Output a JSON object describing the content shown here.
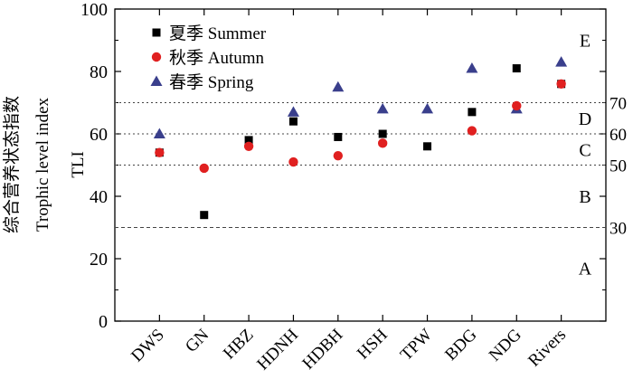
{
  "chart_data": {
    "type": "scatter",
    "title": "",
    "ylabel_cn": "综合营养状态指数",
    "ylabel_en": "Trophic level index",
    "ylabel_right": "TLI",
    "categories": [
      "DWS",
      "GN",
      "HBZ",
      "HDNH",
      "HDBH",
      "HSH",
      "TPW",
      "BDG",
      "NDG",
      "Rivers"
    ],
    "ylim": [
      0,
      100
    ],
    "yticks": [
      0,
      20,
      40,
      60,
      80,
      100
    ],
    "grid": false,
    "legend_position": "top-left",
    "series": [
      {
        "name": "夏季 Summer",
        "marker": "square",
        "color": "#000000",
        "values": [
          54,
          34,
          58,
          64,
          59,
          60,
          56,
          67,
          81,
          76
        ]
      },
      {
        "name": "秋季 Autumn",
        "marker": "circle",
        "color": "#e02020",
        "values": [
          54,
          49,
          56,
          51,
          53,
          57,
          null,
          61,
          69,
          76
        ]
      },
      {
        "name": "春季 Spring",
        "marker": "triangle",
        "color": "#3a3f8c",
        "values": [
          60,
          null,
          null,
          67,
          75,
          68,
          68,
          81,
          68,
          83
        ]
      }
    ],
    "thresholds": [
      {
        "value": 30,
        "label": "30",
        "style": "dashed"
      },
      {
        "value": 50,
        "label": "50",
        "style": "dotted"
      },
      {
        "value": 60,
        "label": "60",
        "style": "dotted"
      },
      {
        "value": 70,
        "label": "70",
        "style": "dotted"
      }
    ],
    "zones": [
      {
        "label": "A",
        "value": 17
      },
      {
        "label": "B",
        "value": 40
      },
      {
        "label": "C",
        "value": 55
      },
      {
        "label": "D",
        "value": 65
      },
      {
        "label": "E",
        "value": 90
      }
    ]
  }
}
